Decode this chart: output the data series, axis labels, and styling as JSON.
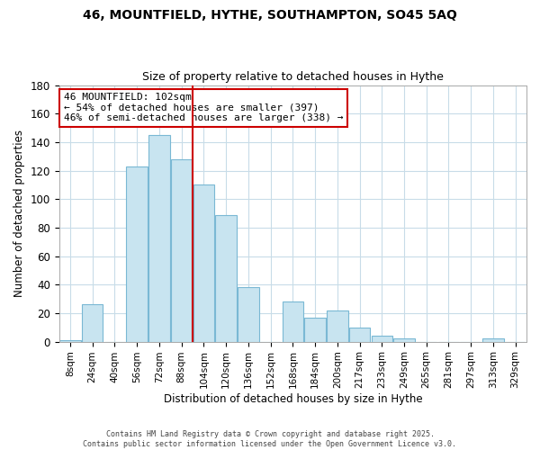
{
  "title": "46, MOUNTFIELD, HYTHE, SOUTHAMPTON, SO45 5AQ",
  "subtitle": "Size of property relative to detached houses in Hythe",
  "xlabel": "Distribution of detached houses by size in Hythe",
  "ylabel": "Number of detached properties",
  "bin_labels": [
    "8sqm",
    "24sqm",
    "40sqm",
    "56sqm",
    "72sqm",
    "88sqm",
    "104sqm",
    "120sqm",
    "136sqm",
    "152sqm",
    "168sqm",
    "184sqm",
    "200sqm",
    "217sqm",
    "233sqm",
    "249sqm",
    "265sqm",
    "281sqm",
    "297sqm",
    "313sqm",
    "329sqm"
  ],
  "bar_heights": [
    1,
    26,
    0,
    123,
    145,
    128,
    110,
    89,
    38,
    0,
    28,
    17,
    22,
    10,
    4,
    2,
    0,
    0,
    0,
    2,
    0
  ],
  "bar_color": "#c8e4f0",
  "bar_edgecolor": "#7ab8d4",
  "vline_bin_index": 6,
  "vline_color": "#cc0000",
  "ylim": [
    0,
    180
  ],
  "yticks": [
    0,
    20,
    40,
    60,
    80,
    100,
    120,
    140,
    160,
    180
  ],
  "annotation_title": "46 MOUNTFIELD: 102sqm",
  "annotation_line1": "← 54% of detached houses are smaller (397)",
  "annotation_line2": "46% of semi-detached houses are larger (338) →",
  "annotation_box_facecolor": "#ffffff",
  "annotation_box_edgecolor": "#cc0000",
  "footer1": "Contains HM Land Registry data © Crown copyright and database right 2025.",
  "footer2": "Contains public sector information licensed under the Open Government Licence v3.0.",
  "bg_color": "#ffffff",
  "grid_color": "#c8dce8",
  "title_fontsize": 10,
  "subtitle_fontsize": 9
}
